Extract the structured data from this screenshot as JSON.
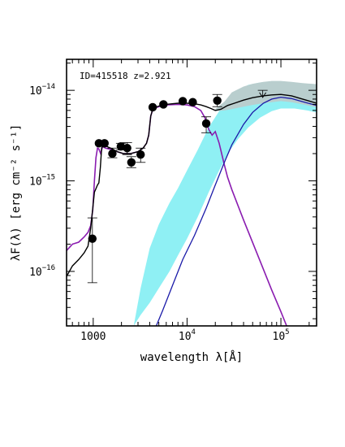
{
  "chart_data": {
    "type": "scatter",
    "annotation": "ID=415518 z=2.921",
    "xlabel": "wavelength λ[Å]",
    "ylabel": "λF(λ) [erg cm⁻² s⁻¹]",
    "xscale": "log",
    "yscale": "log",
    "xlim": [
      520,
      240000
    ],
    "ylim": [
      2.5e-17,
      2.2e-14
    ],
    "x_tick_labels": [
      {
        "value": 1000,
        "base": "1000",
        "exp": ""
      },
      {
        "value": 10000,
        "base": "10",
        "exp": "4"
      },
      {
        "value": 100000,
        "base": "10",
        "exp": "5"
      }
    ],
    "y_tick_labels": [
      {
        "value": 1e-16,
        "base": "10",
        "exp": "−16"
      },
      {
        "value": 1e-15,
        "base": "10",
        "exp": "−15"
      },
      {
        "value": 1e-14,
        "base": "10",
        "exp": "−14"
      }
    ],
    "colors": {
      "total": "#000000",
      "galaxy": "#8a1cb0",
      "agn": "#1a1aa8",
      "agn_band": "#8ff0f4",
      "total_band": "#b9cece",
      "points": "#000000"
    },
    "photometry": [
      {
        "x": 980,
        "y": 2.3e-16,
        "ylo": 7.5e-17,
        "yhi": 3.9e-16
      },
      {
        "x": 1150,
        "y": 2.6e-15,
        "ylo": 2.6e-15,
        "yhi": 2.6e-15
      },
      {
        "x": 1320,
        "y": 2.6e-15,
        "ylo": 2.6e-15,
        "yhi": 2.6e-15
      },
      {
        "x": 1600,
        "y": 2e-15,
        "ylo": 1.8e-15,
        "yhi": 2.3e-15
      },
      {
        "x": 1970,
        "y": 2.4e-15,
        "ylo": 2.2e-15,
        "yhi": 2.6e-15
      },
      {
        "x": 2300,
        "y": 2.3e-15,
        "ylo": 1.95e-15,
        "yhi": 2.65e-15
      },
      {
        "x": 2550,
        "y": 1.6e-15,
        "ylo": 1.4e-15,
        "yhi": 1.85e-15
      },
      {
        "x": 3200,
        "y": 1.95e-15,
        "ylo": 1.6e-15,
        "yhi": 2.3e-15
      },
      {
        "x": 4300,
        "y": 6.5e-15,
        "ylo": 6.5e-15,
        "yhi": 6.5e-15
      },
      {
        "x": 5600,
        "y": 7e-15,
        "ylo": 7e-15,
        "yhi": 7e-15
      },
      {
        "x": 9000,
        "y": 7.6e-15,
        "ylo": 7.6e-15,
        "yhi": 7.6e-15
      },
      {
        "x": 11500,
        "y": 7.4e-15,
        "ylo": 7.4e-15,
        "yhi": 7.4e-15
      },
      {
        "x": 16000,
        "y": 4.3e-15,
        "ylo": 3.4e-15,
        "yhi": 5.1e-15
      },
      {
        "x": 21000,
        "y": 7.7e-15,
        "ylo": 6.6e-15,
        "yhi": 9e-15
      }
    ],
    "upper_limits": [
      {
        "x": 64000,
        "y": 8.7e-15,
        "yhi": 1e-14
      }
    ],
    "total_model": [
      [
        520,
        8.8e-17
      ],
      [
        600,
        1.15e-16
      ],
      [
        700,
        1.35e-16
      ],
      [
        800,
        1.6e-16
      ],
      [
        880,
        1.9e-16
      ],
      [
        940,
        3e-16
      ],
      [
        990,
        5e-16
      ],
      [
        1030,
        7.5e-16
      ],
      [
        1070,
        8.2e-16
      ],
      [
        1110,
        9e-16
      ],
      [
        1150,
        9.5e-16
      ],
      [
        1190,
        1.4e-15
      ],
      [
        1230,
        2.3e-15
      ],
      [
        1280,
        2.55e-15
      ],
      [
        1400,
        2.4e-15
      ],
      [
        1600,
        2.25e-15
      ],
      [
        1800,
        2.1e-15
      ],
      [
        2100,
        2e-15
      ],
      [
        2500,
        2e-15
      ],
      [
        3000,
        2.1e-15
      ],
      [
        3400,
        2.3e-15
      ],
      [
        3700,
        2.6e-15
      ],
      [
        3900,
        3.2e-15
      ],
      [
        4100,
        5.2e-15
      ],
      [
        4300,
        6.2e-15
      ],
      [
        4600,
        6.5e-15
      ],
      [
        5000,
        6.7e-15
      ],
      [
        6000,
        7e-15
      ],
      [
        8000,
        7.2e-15
      ],
      [
        10000,
        7.2e-15
      ],
      [
        12000,
        7.1e-15
      ],
      [
        14000,
        6.9e-15
      ],
      [
        16000,
        6.6e-15
      ],
      [
        18000,
        6.3e-15
      ],
      [
        20000,
        6e-15
      ],
      [
        23000,
        6.2e-15
      ],
      [
        27000,
        6.8e-15
      ],
      [
        32000,
        7.2e-15
      ],
      [
        40000,
        7.8e-15
      ],
      [
        50000,
        8.3e-15
      ],
      [
        65000,
        8.7e-15
      ],
      [
        80000,
        8.9e-15
      ],
      [
        100000,
        9e-15
      ],
      [
        130000,
        8.7e-15
      ],
      [
        170000,
        8e-15
      ],
      [
        240000,
        7.2e-15
      ]
    ],
    "galaxy_model": [
      [
        520,
        1.7e-16
      ],
      [
        600,
        2e-16
      ],
      [
        700,
        2.1e-16
      ],
      [
        800,
        2.4e-16
      ],
      [
        880,
        2.7e-16
      ],
      [
        940,
        3.2e-16
      ],
      [
        990,
        4.8e-16
      ],
      [
        1030,
        1e-15
      ],
      [
        1070,
        1.8e-15
      ],
      [
        1110,
        2.3e-15
      ],
      [
        1150,
        2.25e-15
      ],
      [
        1200,
        2e-15
      ],
      [
        1260,
        2.4e-15
      ],
      [
        1350,
        2.3e-15
      ],
      [
        1600,
        2.2e-15
      ],
      [
        1800,
        2.1e-15
      ],
      [
        2100,
        2e-15
      ],
      [
        2500,
        2e-15
      ],
      [
        3000,
        2.1e-15
      ],
      [
        3400,
        2.3e-15
      ],
      [
        3700,
        2.6e-15
      ],
      [
        3900,
        3.2e-15
      ],
      [
        4100,
        5.2e-15
      ],
      [
        4300,
        6.1e-15
      ],
      [
        4600,
        6.4e-15
      ],
      [
        5000,
        6.6e-15
      ],
      [
        6000,
        6.9e-15
      ],
      [
        8000,
        7e-15
      ],
      [
        10000,
        6.9e-15
      ],
      [
        12000,
        6.6e-15
      ],
      [
        14000,
        6e-15
      ],
      [
        15500,
        5e-15
      ],
      [
        17000,
        3.7e-15
      ],
      [
        18500,
        3.2e-15
      ],
      [
        20000,
        3.5e-15
      ],
      [
        22000,
        2.6e-15
      ],
      [
        25000,
        1.5e-15
      ],
      [
        27000,
        1.1e-15
      ],
      [
        30000,
        8e-16
      ],
      [
        40000,
        3.7e-16
      ],
      [
        60000,
        1.3e-16
      ],
      [
        80000,
        6.2e-17
      ],
      [
        100000,
        3.6e-17
      ],
      [
        115000,
        2.5e-17
      ]
    ],
    "agn_model": [
      [
        4700,
        2.5e-17
      ],
      [
        5500,
        3.7e-17
      ],
      [
        7000,
        7e-17
      ],
      [
        9000,
        1.35e-16
      ],
      [
        12000,
        2.5e-16
      ],
      [
        16000,
        5e-16
      ],
      [
        20000,
        9e-16
      ],
      [
        25000,
        1.6e-15
      ],
      [
        30000,
        2.5e-15
      ],
      [
        40000,
        4.2e-15
      ],
      [
        50000,
        5.7e-15
      ],
      [
        65000,
        7.2e-15
      ],
      [
        80000,
        8e-15
      ],
      [
        100000,
        8.4e-15
      ],
      [
        130000,
        8.1e-15
      ],
      [
        170000,
        7.5e-15
      ],
      [
        240000,
        6.8e-15
      ]
    ],
    "agn_band": {
      "x": [
        2700,
        3200,
        4000,
        5000,
        6500,
        8000,
        10000,
        13000,
        17000,
        22000,
        28000,
        35000,
        45000,
        60000,
        80000,
        100000,
        140000,
        190000,
        240000
      ],
      "lo": [
        2.5e-17,
        3.3e-17,
        4.5e-17,
        6.5e-17,
        1e-16,
        1.5e-16,
        2.3e-16,
        4e-16,
        7.5e-16,
        1.3e-15,
        2.1e-15,
        2.9e-15,
        3.9e-15,
        5e-15,
        5.9e-15,
        6.3e-15,
        6.3e-15,
        6e-15,
        5.7e-15
      ],
      "hi": [
        2.5e-17,
        6.5e-17,
        1.8e-16,
        3.3e-16,
        5.7e-16,
        8.3e-16,
        1.3e-15,
        2.2e-15,
        3.9e-15,
        5.9e-15,
        8.4e-15,
        1e-14,
        1.15e-14,
        1.22e-14,
        1.25e-14,
        1.25e-14,
        1.22e-14,
        1.18e-14,
        1.15e-14
      ]
    },
    "total_band": {
      "x": [
        20000,
        25000,
        30000,
        40000,
        50000,
        65000,
        80000,
        100000,
        130000,
        170000,
        240000
      ],
      "lo": [
        5.9e-15,
        6e-15,
        6.2e-15,
        6.6e-15,
        6.9e-15,
        7.2e-15,
        7.4e-15,
        7.6e-15,
        7.4e-15,
        7e-15,
        6.5e-15
      ],
      "hi": [
        6.2e-15,
        7.5e-15,
        9.5e-15,
        1.1e-14,
        1.18e-14,
        1.24e-14,
        1.27e-14,
        1.27e-14,
        1.24e-14,
        1.2e-14,
        1.17e-14
      ]
    }
  }
}
